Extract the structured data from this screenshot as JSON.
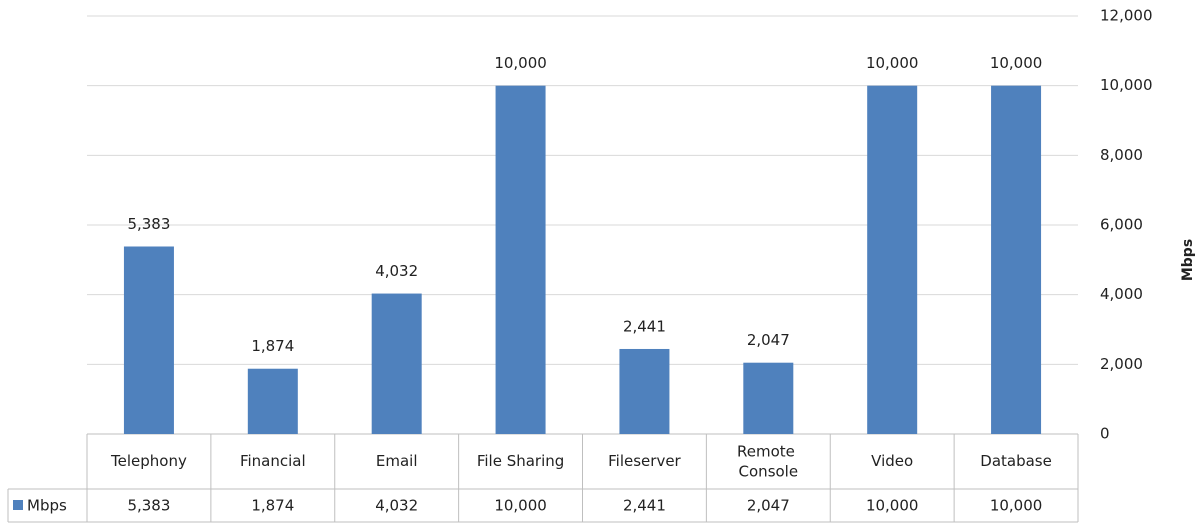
{
  "chart_data": {
    "type": "bar",
    "y_label": "Mbps",
    "categories": [
      "Telephony",
      "Financial",
      "Email",
      "File Sharing",
      "Fileserver",
      "Remote Console",
      "Video",
      "Database"
    ],
    "series": [
      {
        "name": "Mbps",
        "color": "#4f81bd",
        "values": [
          5383,
          1874,
          4032,
          10000,
          2441,
          2047,
          10000,
          10000
        ],
        "value_labels": [
          "5,383",
          "1,874",
          "4,032",
          "10,000",
          "2,441",
          "2,047",
          "10,000",
          "10,000"
        ]
      }
    ],
    "ylim": [
      0,
      12000
    ],
    "yticks": [
      0,
      {
        "value": 2000,
        "label": "2,000"
      },
      {
        "value": 4000,
        "label": "4,000"
      },
      {
        "value": 6000,
        "label": "6,000"
      },
      {
        "value": 8000,
        "label": "8,000"
      },
      {
        "value": 10000,
        "label": "10,000"
      },
      {
        "value": 12000,
        "label": "12,000"
      }
    ],
    "grid": true,
    "data_table": true
  }
}
